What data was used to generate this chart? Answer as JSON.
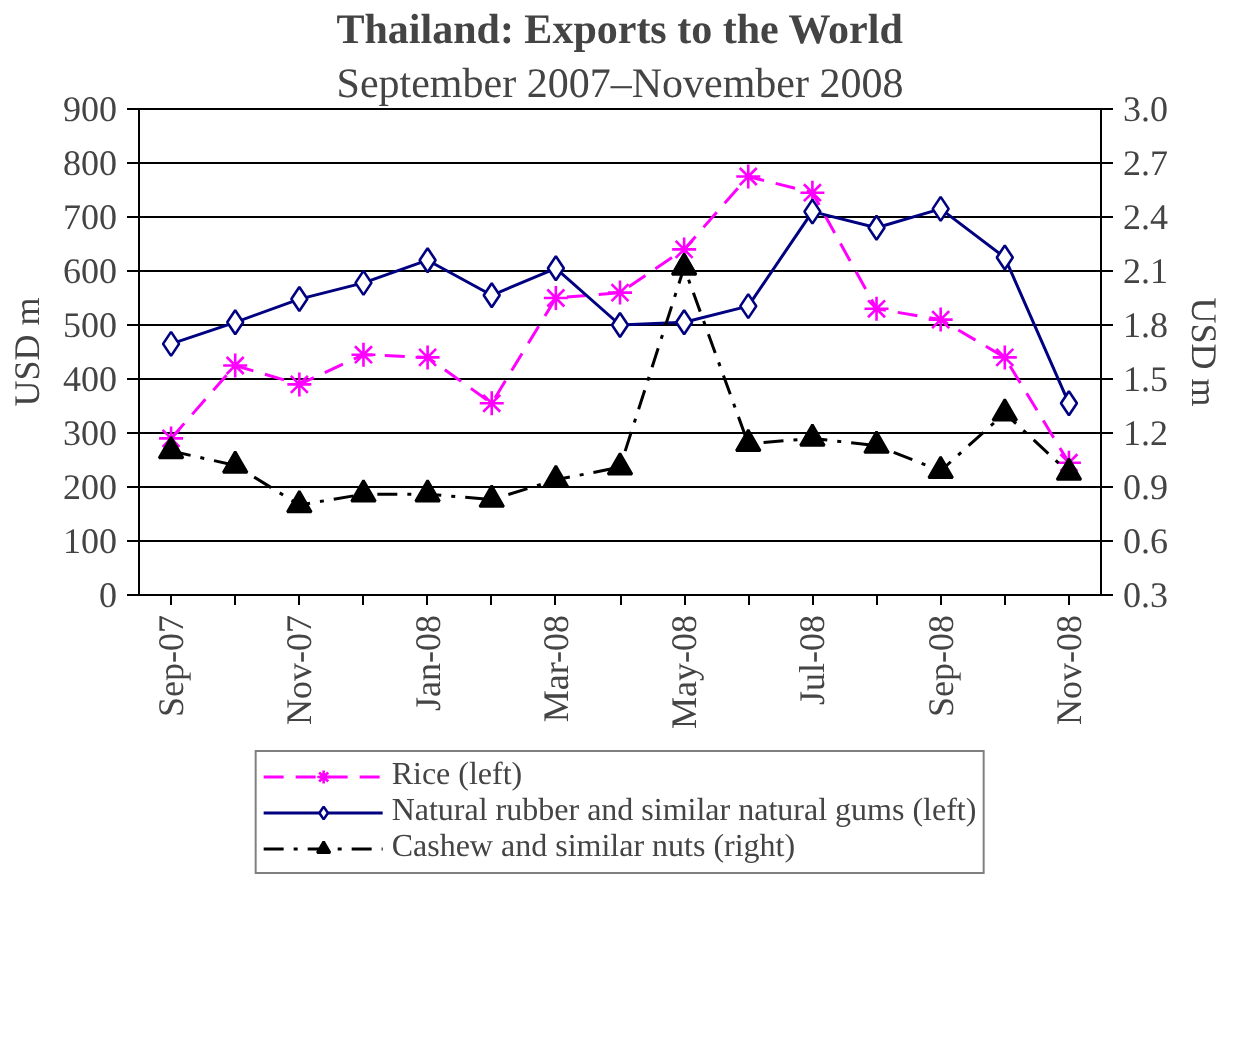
{
  "chart_data": {
    "type": "line",
    "title": "Thailand: Exports to the World",
    "subtitle": "September 2007–November 2008",
    "ylabel": "USD m",
    "y2label": "USD m",
    "categories": [
      "Sep-07",
      null,
      "Nov-07",
      null,
      "Jan-08",
      null,
      "Mar-08",
      null,
      "May-08",
      null,
      "Jul-08",
      null,
      "Sep-08",
      null,
      "Nov-08"
    ],
    "series": [
      {
        "name": "Rice (left)",
        "color": "#ff00ff",
        "marker": "cross",
        "line_style": "dashed",
        "values": [
          290,
          425,
          390,
          445,
          440,
          355,
          550,
          560,
          640,
          775,
          745,
          530,
          510,
          440,
          245
        ]
      },
      {
        "name": "Natural rubber and similar natural gums (left)",
        "color": "#000080",
        "marker": "diamond",
        "line_style": "solid",
        "values": [
          465,
          505,
          548,
          578,
          620,
          555,
          605,
          500,
          505,
          535,
          710,
          680,
          715,
          625,
          355
        ]
      },
      {
        "name": "Cashew and similar nuts (right)",
        "color": "#000000",
        "marker": "triangle",
        "line_style": "dashdot",
        "axis": "y2",
        "values": [
          1.1,
          1.02,
          0.8,
          0.86,
          0.86,
          0.83,
          0.94,
          1.01,
          2.12,
          1.14,
          1.17,
          1.13,
          0.99,
          1.31,
          0.98
        ]
      }
    ],
    "ylim": [
      0,
      900
    ],
    "yticks": [
      0,
      100,
      200,
      300,
      400,
      500,
      600,
      700,
      800,
      900
    ],
    "y2lim": [
      0.3,
      3.0
    ],
    "y2ticks": [
      {
        "value": 0.3,
        "label": "0.3"
      },
      {
        "value": 0.6,
        "label": "0.6"
      },
      {
        "value": 0.9,
        "label": "0.9"
      },
      {
        "value": 1.2,
        "label": "1.2"
      },
      {
        "value": 1.5,
        "label": "1.5"
      },
      {
        "value": 1.8,
        "label": "1.8"
      },
      {
        "value": 2.1,
        "label": "2.1"
      },
      {
        "value": 2.4,
        "label": "2.4"
      },
      {
        "value": 2.7,
        "label": "2.7"
      },
      {
        "value": 3.0,
        "label": "3.0"
      }
    ],
    "grid": "y",
    "legend": "bottom"
  }
}
